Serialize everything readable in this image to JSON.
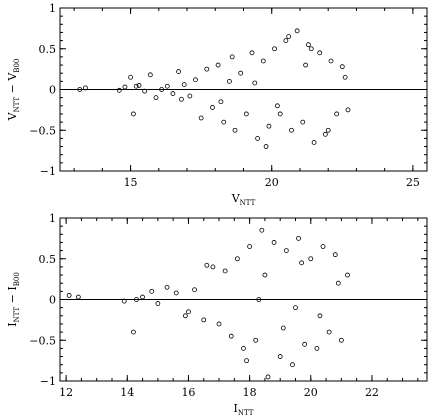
{
  "chart_data": [
    {
      "type": "scatter",
      "title": "",
      "xlabel": "V_NTT",
      "xlabel_main": "V",
      "xlabel_sub": "NTT",
      "ylabel": "V_NTT − V_B00",
      "ylabel_parts": [
        "V",
        "NTT",
        " − V",
        "B00"
      ],
      "xlim": [
        12.5,
        25.5
      ],
      "ylim": [
        -1,
        1
      ],
      "xticks": [
        15,
        20,
        25
      ],
      "xtick_labels": [
        "15",
        "20",
        "25"
      ],
      "xminor_step": 1,
      "yticks": [
        -1,
        -0.5,
        0,
        0.5,
        1
      ],
      "ytick_labels": [
        "−1",
        "−0.5",
        "0",
        "0.5",
        "1"
      ],
      "yminor_step": 0.1,
      "reference_line_y": 0,
      "series": [
        {
          "marker": "open-circle",
          "x": [
            13.2,
            13.4,
            14.6,
            14.8,
            15.0,
            15.1,
            15.3,
            15.5,
            15.7,
            15.9,
            16.1,
            16.3,
            16.5,
            16.7,
            16.9,
            17.1,
            17.3,
            17.5,
            17.7,
            17.9,
            18.1,
            18.3,
            18.5,
            18.7,
            18.9,
            19.1,
            19.3,
            19.5,
            19.7,
            19.9,
            20.1,
            20.3,
            20.5,
            20.7,
            20.9,
            21.1,
            21.3,
            21.5,
            21.7,
            21.9,
            22.1,
            22.3,
            22.5,
            22.7,
            15.2,
            16.8,
            18.6,
            19.8,
            20.6,
            21.4,
            22.0,
            22.6,
            20.2,
            21.2,
            19.4,
            18.2
          ],
          "y": [
            0.0,
            0.02,
            -0.01,
            0.03,
            0.15,
            -0.3,
            0.05,
            -0.02,
            0.18,
            -0.1,
            0.0,
            0.04,
            -0.05,
            0.22,
            0.06,
            -0.08,
            0.12,
            -0.35,
            0.25,
            -0.22,
            0.3,
            -0.4,
            0.1,
            -0.5,
            0.2,
            -0.3,
            0.45,
            -0.6,
            0.35,
            -0.45,
            0.5,
            -0.3,
            0.6,
            -0.5,
            0.72,
            -0.4,
            0.55,
            -0.65,
            0.45,
            -0.55,
            0.35,
            -0.3,
            0.28,
            -0.25,
            0.04,
            -0.12,
            0.4,
            -0.7,
            0.65,
            0.5,
            -0.5,
            0.15,
            -0.2,
            0.3,
            0.08,
            -0.15
          ]
        }
      ]
    },
    {
      "type": "scatter",
      "title": "",
      "xlabel": "I_NTT",
      "xlabel_main": "I",
      "xlabel_sub": "NTT",
      "ylabel": "I_NTT − I_B00",
      "ylabel_parts": [
        "I",
        "NTT",
        " − I",
        "B00"
      ],
      "xlim": [
        11.8,
        23.8
      ],
      "ylim": [
        -1,
        1
      ],
      "xticks": [
        12,
        14,
        16,
        18,
        20,
        22
      ],
      "xtick_labels": [
        "12",
        "14",
        "16",
        "18",
        "20",
        "22"
      ],
      "xminor_step": 0.5,
      "yticks": [
        -1,
        -0.5,
        0,
        0.5,
        1
      ],
      "ytick_labels": [
        "−1",
        "−0.5",
        "0",
        "0.5",
        "1"
      ],
      "yminor_step": 0.1,
      "reference_line_y": 0,
      "series": [
        {
          "marker": "open-circle",
          "x": [
            12.1,
            12.4,
            13.9,
            14.2,
            14.5,
            14.8,
            15.0,
            15.3,
            15.6,
            15.9,
            16.2,
            16.5,
            16.8,
            17.0,
            17.2,
            17.4,
            17.6,
            17.8,
            18.0,
            18.2,
            18.4,
            18.6,
            18.8,
            19.0,
            19.2,
            19.4,
            19.6,
            19.8,
            20.0,
            20.2,
            20.4,
            20.6,
            20.8,
            21.0,
            21.2,
            14.3,
            16.0,
            16.6,
            17.9,
            18.5,
            19.1,
            19.7,
            20.3,
            20.9,
            18.3,
            19.5
          ],
          "y": [
            0.05,
            0.03,
            -0.02,
            -0.4,
            0.03,
            0.1,
            -0.05,
            0.15,
            0.08,
            -0.2,
            0.12,
            -0.25,
            0.4,
            -0.3,
            0.35,
            -0.45,
            0.5,
            -0.6,
            0.65,
            -0.5,
            0.85,
            -0.95,
            0.7,
            -0.7,
            0.6,
            -0.8,
            0.75,
            -0.55,
            0.5,
            -0.6,
            0.65,
            -0.4,
            0.55,
            -0.5,
            0.3,
            0.0,
            -0.15,
            0.42,
            -0.75,
            0.3,
            -0.35,
            0.45,
            -0.2,
            0.2,
            0.0,
            -0.1
          ]
        }
      ]
    }
  ]
}
